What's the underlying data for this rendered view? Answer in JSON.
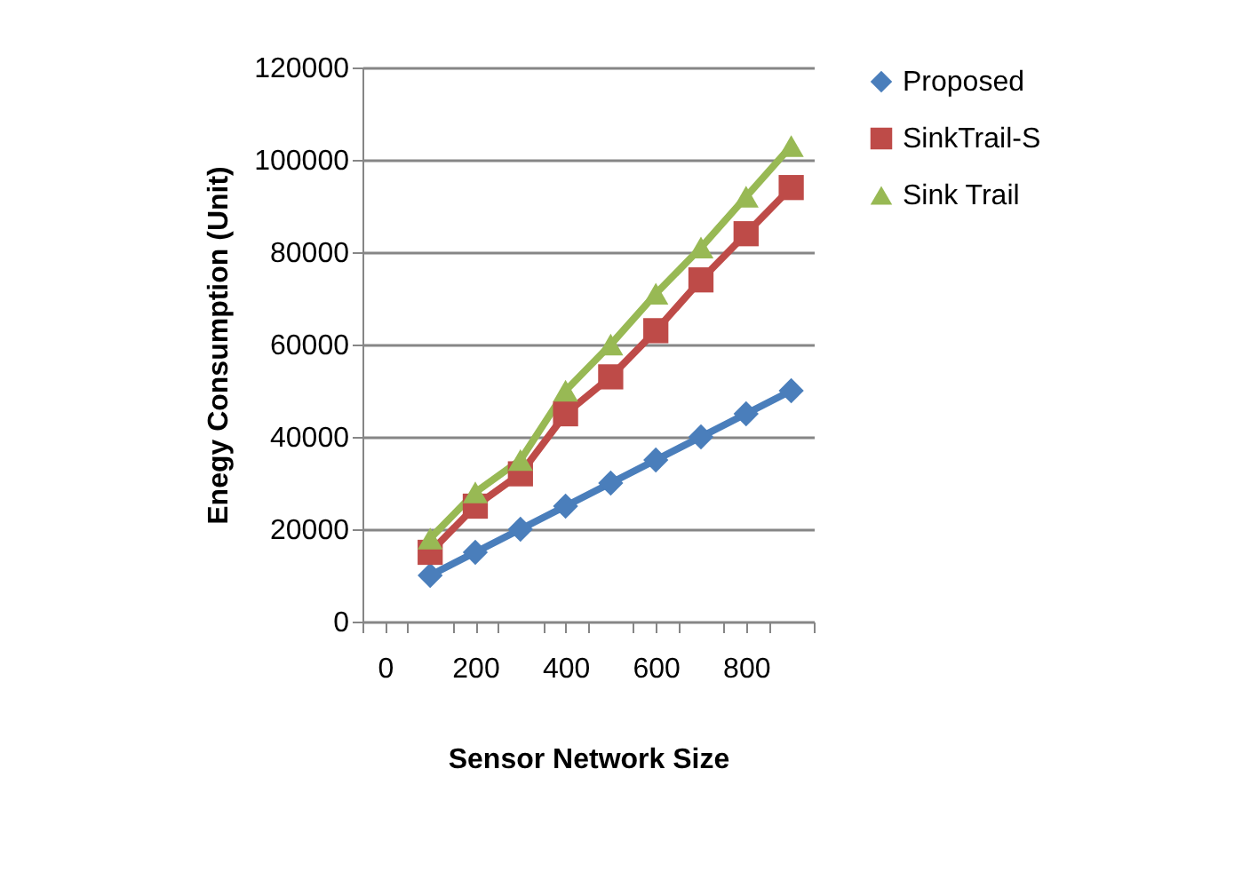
{
  "chart_data": {
    "type": "line",
    "xlabel": "Sensor Network Size",
    "ylabel": "Enegy Consumption (Unit)",
    "x": [
      100,
      200,
      300,
      400,
      500,
      600,
      700,
      800,
      900
    ],
    "series": [
      {
        "name": "Proposed",
        "color": "#4a7ebb",
        "marker": "diamond",
        "values": [
          10000,
          15000,
          20000,
          25000,
          30000,
          35000,
          40000,
          45000,
          50000
        ]
      },
      {
        "name": "SinkTrail-S",
        "color": "#be4b48",
        "marker": "square",
        "values": [
          15000,
          25000,
          32000,
          45000,
          53000,
          63000,
          74000,
          84000,
          94000
        ]
      },
      {
        "name": "Sink Trail",
        "color": "#98b954",
        "marker": "triangle",
        "values": [
          18000,
          28000,
          35000,
          50000,
          60000,
          71000,
          81000,
          92000,
          103000
        ]
      }
    ],
    "xlim": [
      -50,
      950
    ],
    "xticks": [
      {
        "value": -50,
        "label": null
      },
      {
        "value": 0,
        "label": "0"
      },
      {
        "value": 50,
        "label": null
      },
      {
        "value": 150,
        "label": null
      },
      {
        "value": 200,
        "label": "200"
      },
      {
        "value": 250,
        "label": null
      },
      {
        "value": 350,
        "label": null
      },
      {
        "value": 400,
        "label": "400"
      },
      {
        "value": 450,
        "label": null
      },
      {
        "value": 550,
        "label": null
      },
      {
        "value": 600,
        "label": "600"
      },
      {
        "value": 650,
        "label": null
      },
      {
        "value": 750,
        "label": null
      },
      {
        "value": 800,
        "label": "800"
      },
      {
        "value": 850,
        "label": null
      },
      {
        "value": 950,
        "label": null
      }
    ],
    "ylim": [
      0,
      120000
    ],
    "yticks": [
      0,
      20000,
      40000,
      60000,
      80000,
      100000,
      120000
    ],
    "grid": "y",
    "legend": "right",
    "line_style": "solid"
  }
}
